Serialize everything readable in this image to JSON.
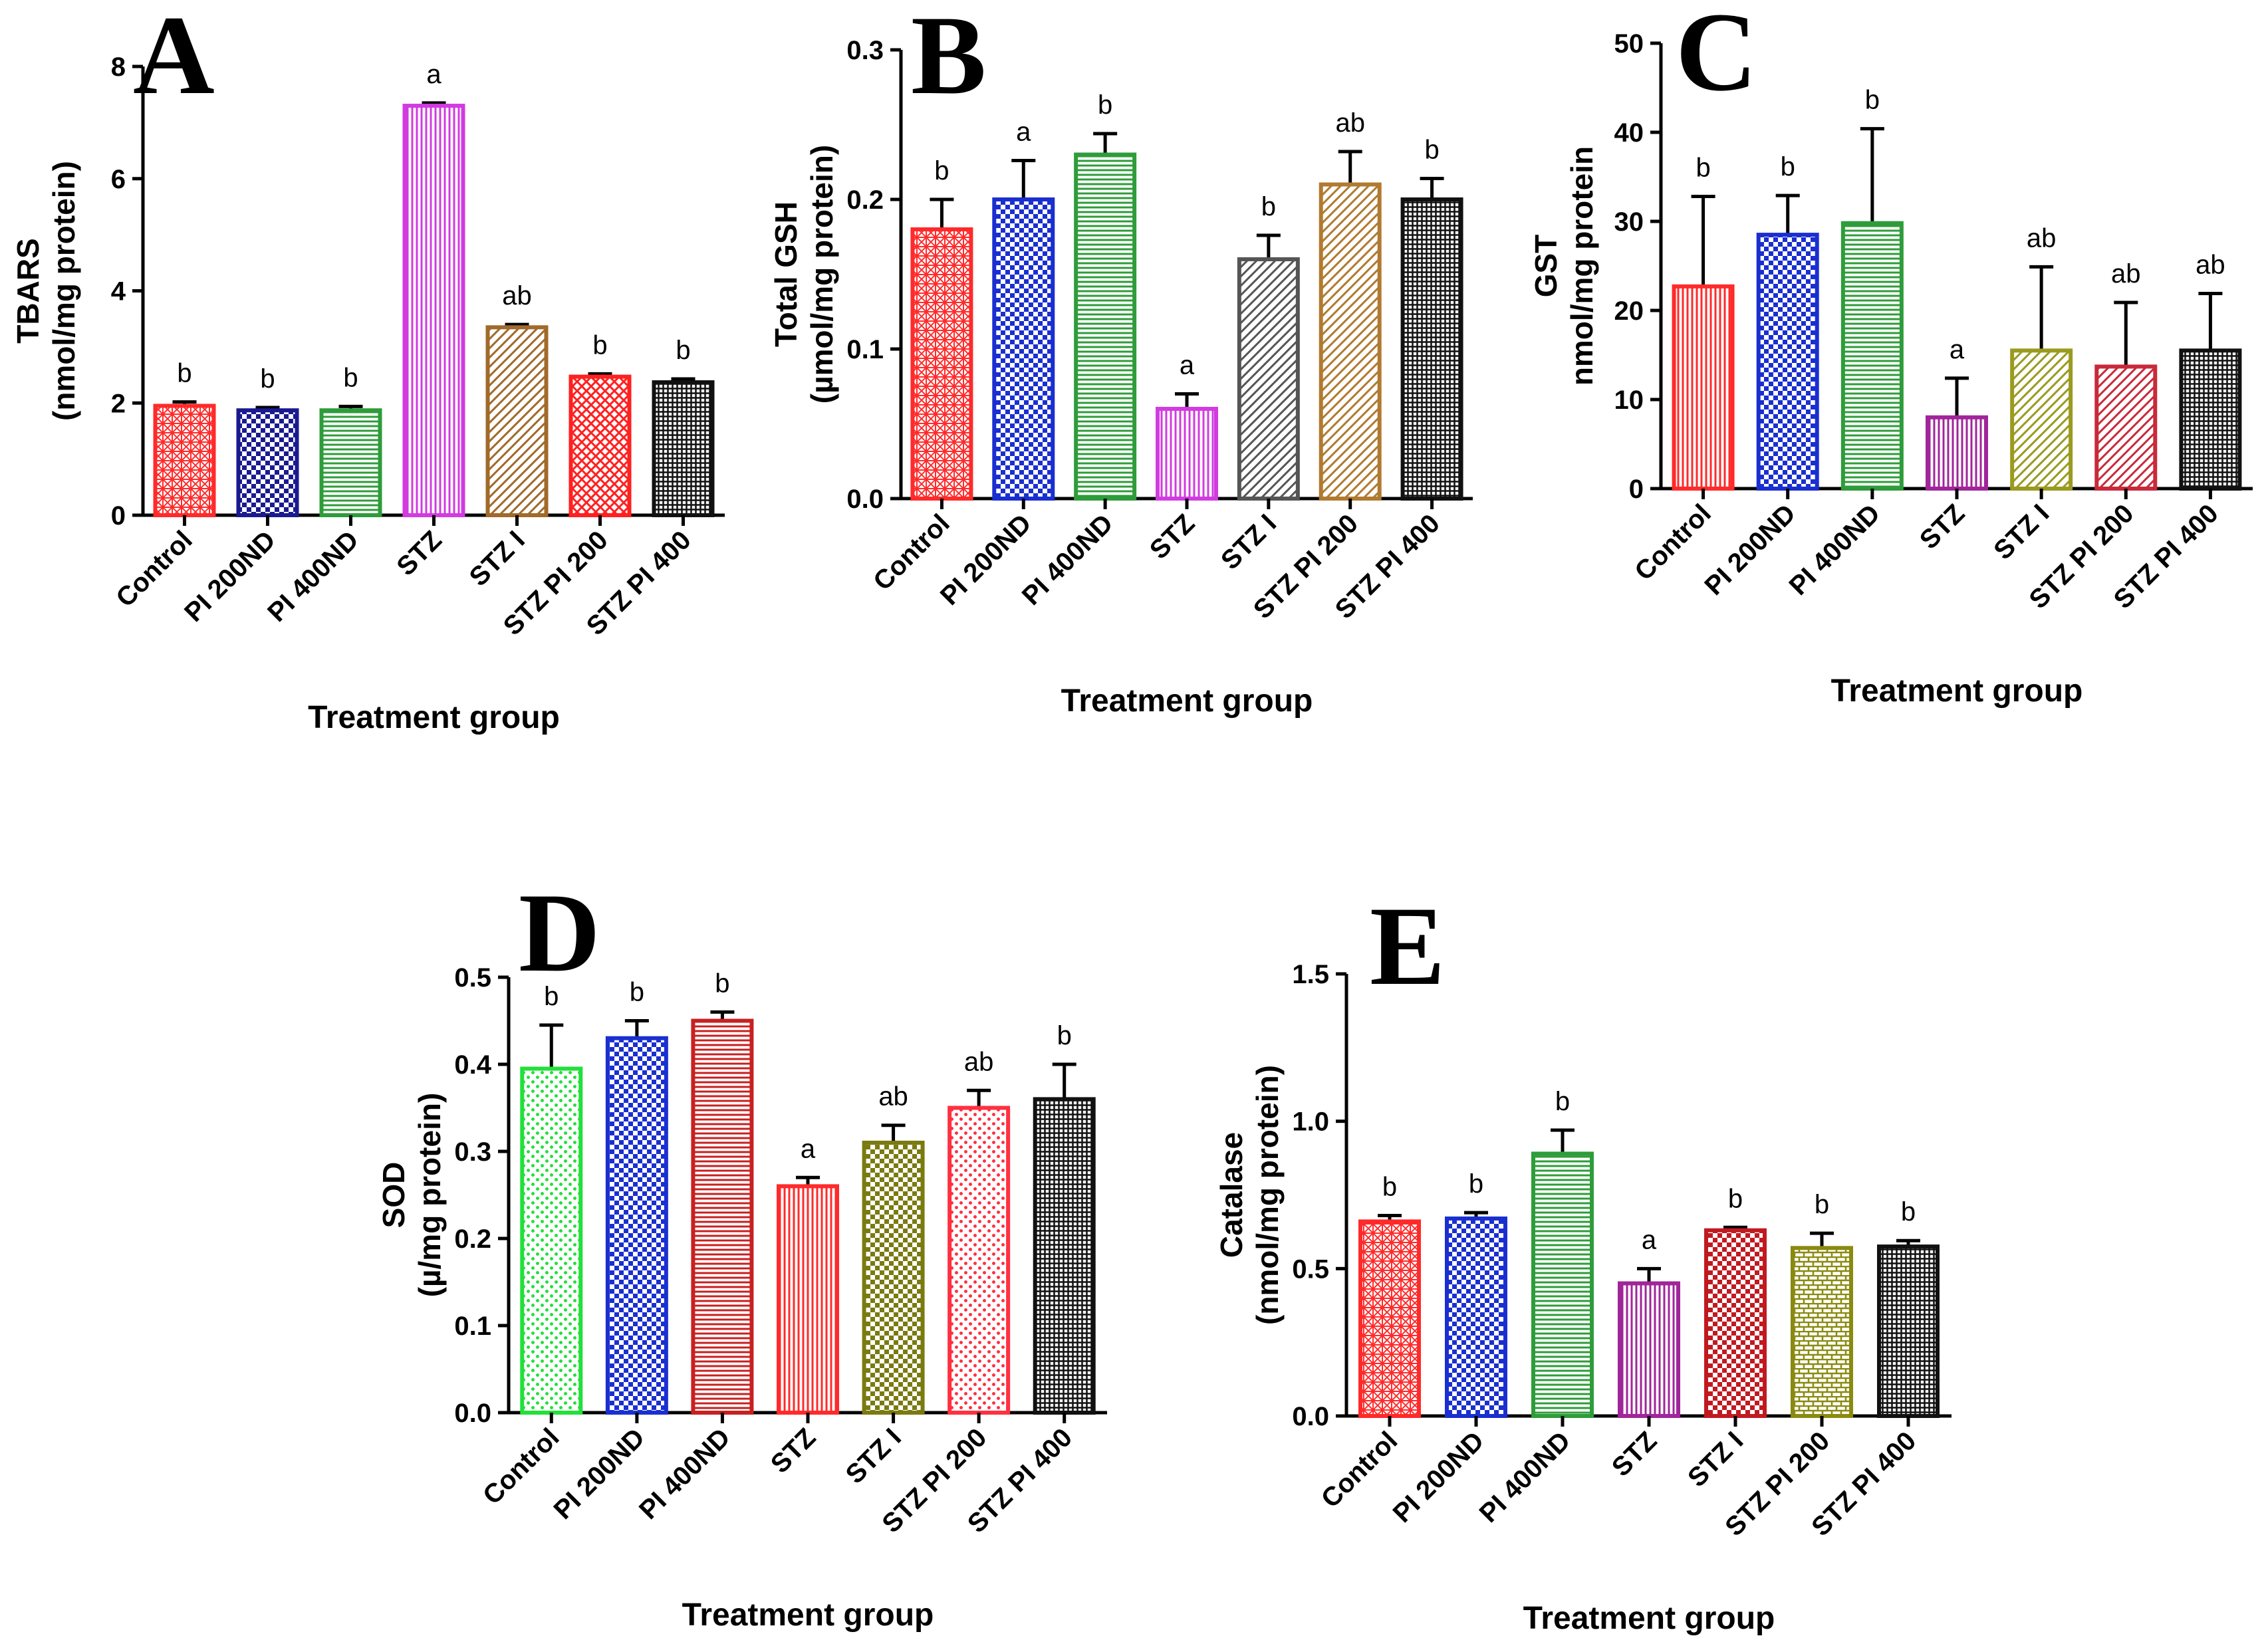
{
  "figure": {
    "x_axis_title": "Treatment group"
  },
  "chart_data": [
    {
      "panel": "A",
      "type": "bar",
      "ylabel_lines": [
        "TBARS",
        "(nmol/mg protein)"
      ],
      "xlabel": "Treatment group",
      "categories": [
        "Control",
        "PI 200ND",
        "PI 400ND",
        "STZ",
        "STZ I",
        "STZ PI 200",
        "STZ PI 400"
      ],
      "values": [
        1.95,
        1.87,
        1.87,
        7.3,
        3.35,
        2.47,
        2.37
      ],
      "errors": [
        0.07,
        0.05,
        0.07,
        0.05,
        0.05,
        0.05,
        0.06
      ],
      "sig": [
        "b",
        "b",
        "b",
        "a",
        "ab",
        "b",
        "b"
      ],
      "ylim": [
        0,
        8
      ],
      "yticks": [
        0,
        2,
        4,
        6,
        8
      ],
      "ytick_labels": [
        "0",
        "2",
        "4",
        "6",
        "8"
      ],
      "colors": [
        "#ff2a2a",
        "#1a1a90",
        "#2e9c3a",
        "#d13be0",
        "#a06a2a",
        "#ff2020",
        "#111111"
      ],
      "patterns": [
        "cross",
        "check",
        "hstripe",
        "vstripe",
        "dstripe",
        "xcross",
        "grid"
      ]
    },
    {
      "panel": "B",
      "type": "bar",
      "ylabel_lines": [
        "Total GSH",
        "(µmol/mg protein)"
      ],
      "xlabel": "Treatment group",
      "categories": [
        "Control",
        "PI 200ND",
        "PI 400ND",
        "STZ",
        "STZ I",
        "STZ PI 200",
        "STZ PI 400"
      ],
      "values": [
        0.18,
        0.2,
        0.23,
        0.06,
        0.16,
        0.21,
        0.2
      ],
      "errors": [
        0.02,
        0.026,
        0.014,
        0.01,
        0.016,
        0.022,
        0.014
      ],
      "sig": [
        "b",
        "a",
        "b",
        "a",
        "b",
        "ab",
        "b"
      ],
      "ylim": [
        0,
        0.3
      ],
      "yticks": [
        0,
        0.1,
        0.2,
        0.3
      ],
      "ytick_labels": [
        "0.0",
        "0.1",
        "0.2",
        "0.3"
      ],
      "colors": [
        "#ff2a2a",
        "#1a2fd0",
        "#2e9c3a",
        "#d13be0",
        "#555555",
        "#b07a30",
        "#111111"
      ],
      "patterns": [
        "cross",
        "check",
        "hstripe",
        "vstripe",
        "dstripe",
        "dstripe",
        "grid"
      ]
    },
    {
      "panel": "C",
      "type": "bar",
      "ylabel_lines": [
        "GST",
        "nmol/mg protein"
      ],
      "xlabel": "Treatment group",
      "categories": [
        "Control",
        "PI 200ND",
        "PI 400ND",
        "STZ",
        "STZ I",
        "STZ PI 200",
        "STZ PI 400"
      ],
      "values": [
        22.7,
        28.5,
        29.8,
        8.0,
        15.5,
        13.7,
        15.5
      ],
      "errors": [
        10.1,
        4.4,
        10.6,
        4.4,
        9.4,
        7.2,
        6.4
      ],
      "sig": [
        "b",
        "b",
        "b",
        "a",
        "ab",
        "ab",
        "ab"
      ],
      "ylim": [
        0,
        50
      ],
      "yticks": [
        0,
        10,
        20,
        30,
        40,
        50
      ],
      "ytick_labels": [
        "0",
        "10",
        "20",
        "30",
        "40",
        "50"
      ],
      "colors": [
        "#ff2a2a",
        "#1a2fd0",
        "#2e9c3a",
        "#a0259a",
        "#9a9a20",
        "#c82a3a",
        "#111111"
      ],
      "patterns": [
        "vstripe",
        "check",
        "hstripe",
        "vstripe",
        "dstripe",
        "dstripe",
        "grid"
      ]
    },
    {
      "panel": "D",
      "type": "bar",
      "ylabel_lines": [
        "SOD",
        "(µ/mg protein)"
      ],
      "xlabel": "Treatment group",
      "categories": [
        "Control",
        "PI 200ND",
        "PI 400ND",
        "STZ",
        "STZ I",
        "STZ PI 200",
        "STZ PI 400"
      ],
      "values": [
        0.395,
        0.43,
        0.45,
        0.26,
        0.31,
        0.35,
        0.36
      ],
      "errors": [
        0.05,
        0.02,
        0.01,
        0.01,
        0.02,
        0.02,
        0.04
      ],
      "sig": [
        "b",
        "b",
        "b",
        "a",
        "ab",
        "ab",
        "b"
      ],
      "ylim": [
        0,
        0.5
      ],
      "yticks": [
        0,
        0.1,
        0.2,
        0.3,
        0.4,
        0.5
      ],
      "ytick_labels": [
        "0.0",
        "0.1",
        "0.2",
        "0.3",
        "0.4",
        "0.5"
      ],
      "colors": [
        "#22e03a",
        "#1a2fd0",
        "#c82020",
        "#ff2a2a",
        "#7a7a10",
        "#ff3040",
        "#111111"
      ],
      "patterns": [
        "dots",
        "check",
        "hstripe",
        "vstripe",
        "check",
        "dots",
        "grid"
      ]
    },
    {
      "panel": "E",
      "type": "bar",
      "ylabel_lines": [
        "Catalase",
        "(nmol/mg protein)"
      ],
      "xlabel": "Treatment group",
      "categories": [
        "Control",
        "PI 200ND",
        "PI 400ND",
        "STZ",
        "STZ I",
        "STZ PI 200",
        "STZ PI 400"
      ],
      "values": [
        0.66,
        0.67,
        0.89,
        0.45,
        0.63,
        0.57,
        0.575
      ],
      "errors": [
        0.02,
        0.02,
        0.08,
        0.05,
        0.01,
        0.05,
        0.02
      ],
      "sig": [
        "b",
        "b",
        "b",
        "a",
        "b",
        "b",
        "b"
      ],
      "ylim": [
        0,
        1.5
      ],
      "yticks": [
        0,
        0.5,
        1.0,
        1.5
      ],
      "ytick_labels": [
        "0.0",
        "0.5",
        "1.0",
        "1.5"
      ],
      "colors": [
        "#ff2a2a",
        "#1a2fd0",
        "#2e9c3a",
        "#a0259a",
        "#c01a20",
        "#8a8a10",
        "#111111"
      ],
      "patterns": [
        "cross",
        "check",
        "hstripe",
        "vstripe",
        "check",
        "brick",
        "grid"
      ]
    }
  ]
}
